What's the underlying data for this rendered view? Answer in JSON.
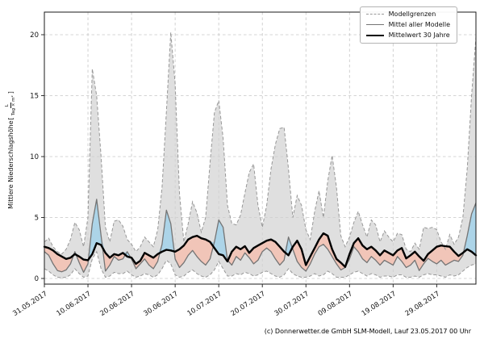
{
  "figure": {
    "ylabel_prefix": "Mittlere Niederschlagshöhe ",
    "ylabel_bracket_open": "[",
    "ylabel_frac_num": "L",
    "ylabel_frac_den": "Tag × m²",
    "ylabel_bracket_close": "]",
    "caption": "(c) Donnerwetter.de GmbH SLM-Modell, Lauf 23.05.2017 00 Uhr"
  },
  "chart_data": {
    "type": "line",
    "title": "",
    "xlabel": "",
    "ylabel": "Mittlere Niederschlagshöhe [L/(Tag × m²)]",
    "grid": true,
    "legend_position": "top-right",
    "ylim": [
      -0.5,
      21.9
    ],
    "y_ticks": [
      0,
      5,
      10,
      15,
      20
    ],
    "x_start_date": "31.05.2017",
    "x_end_date": "07.09.2017",
    "x_step_days": 1,
    "x_tick_days": [
      0,
      10,
      20,
      30,
      40,
      50,
      60,
      70,
      80,
      90
    ],
    "x_tick_labels": [
      "31.05.2017",
      "10.06.2017",
      "20.06.2017",
      "30.06.2017",
      "10.07.2017",
      "20.07.2017",
      "30.07.2017",
      "09.08.2017",
      "19.08.2017",
      "29.08.2017"
    ],
    "legend": [
      {
        "label": "Modellgrenzen",
        "style": "dashed-gray"
      },
      {
        "label": "Mittel aller Modelle",
        "style": "solid-gray"
      },
      {
        "label": "Mittelwert 30 Jahre",
        "style": "solid-black"
      }
    ],
    "colors": {
      "envelope_fill": "#d2d2d2",
      "envelope_edge": "#979797",
      "above_fill": "#a9d3e8",
      "below_fill": "#f1c3b5",
      "mean_line": "#747474",
      "climate_line": "#000000",
      "grid_line": "#c6c6c6"
    },
    "series": [
      {
        "name": "Modellgrenze oben",
        "values": [
          3.0,
          3.3,
          2.6,
          2.2,
          2.0,
          2.4,
          3.2,
          4.6,
          4.0,
          2.6,
          5.0,
          17.2,
          15.0,
          10.0,
          4.2,
          3.0,
          4.7,
          4.8,
          4.3,
          3.2,
          2.8,
          2.2,
          2.6,
          3.4,
          3.0,
          2.6,
          4.0,
          7.5,
          13.7,
          20.2,
          16.0,
          7.0,
          3.0,
          4.5,
          6.3,
          5.4,
          3.8,
          5.0,
          9.5,
          13.6,
          14.6,
          11.5,
          6.0,
          4.5,
          4.4,
          5.2,
          7.0,
          8.7,
          9.4,
          6.0,
          4.2,
          6.0,
          9.0,
          11.0,
          12.3,
          12.4,
          9.0,
          5.0,
          6.8,
          6.0,
          4.0,
          3.2,
          5.5,
          7.2,
          5.0,
          8.0,
          10.1,
          7.5,
          3.5,
          2.6,
          3.4,
          4.6,
          5.5,
          4.4,
          3.4,
          4.8,
          4.4,
          3.0,
          3.9,
          3.4,
          3.0,
          3.7,
          3.6,
          2.4,
          2.2,
          2.9,
          2.4,
          4.2,
          4.1,
          4.2,
          4.0,
          3.0,
          2.4,
          3.6,
          2.8,
          3.4,
          5.0,
          9.0,
          15.0,
          19.8
        ]
      },
      {
        "name": "Modellgrenze unten",
        "values": [
          0.8,
          0.6,
          0.3,
          0.1,
          0.05,
          0.1,
          0.3,
          0.8,
          0.4,
          0.1,
          0.2,
          1.6,
          2.2,
          0.8,
          0.1,
          0.2,
          0.5,
          0.4,
          0.4,
          0.6,
          0.3,
          0.1,
          0.2,
          0.4,
          0.3,
          0.1,
          0.3,
          0.8,
          1.5,
          1.2,
          0.3,
          0.1,
          0.2,
          0.5,
          0.7,
          0.4,
          0.2,
          0.1,
          0.3,
          0.7,
          1.4,
          0.8,
          0.2,
          0.2,
          0.4,
          0.3,
          0.5,
          0.4,
          0.2,
          0.3,
          0.5,
          0.6,
          0.4,
          0.2,
          0.1,
          0.3,
          0.8,
          0.4,
          0.2,
          0.1,
          0.1,
          0.2,
          0.4,
          0.2,
          0.3,
          0.6,
          0.4,
          0.1,
          0.1,
          0.1,
          0.3,
          0.5,
          0.6,
          0.4,
          0.2,
          0.4,
          0.3,
          0.1,
          0.2,
          0.2,
          0.1,
          0.3,
          0.3,
          0.1,
          0.1,
          0.2,
          0.1,
          0.3,
          0.4,
          0.3,
          0.3,
          0.2,
          0.1,
          0.3,
          0.2,
          0.3,
          0.6,
          0.9,
          1.1,
          1.2
        ]
      },
      {
        "name": "Mittel aller Modelle",
        "values": [
          2.2,
          1.9,
          1.2,
          0.65,
          0.55,
          0.7,
          1.2,
          2.2,
          1.3,
          0.5,
          1.2,
          4.5,
          6.5,
          3.5,
          0.6,
          1.1,
          1.8,
          1.5,
          1.6,
          2.2,
          1.6,
          0.8,
          1.2,
          1.6,
          1.1,
          0.8,
          1.4,
          2.8,
          5.6,
          4.5,
          1.6,
          0.9,
          1.3,
          1.9,
          2.3,
          1.8,
          1.4,
          1.1,
          1.6,
          3.0,
          4.8,
          4.2,
          1.5,
          1.1,
          1.8,
          1.5,
          2.1,
          1.7,
          1.2,
          1.5,
          2.2,
          2.5,
          2.2,
          1.6,
          1.1,
          1.5,
          3.4,
          2.4,
          1.4,
          0.9,
          0.6,
          1.2,
          2.0,
          2.6,
          2.8,
          2.4,
          1.8,
          1.2,
          0.7,
          0.9,
          1.6,
          2.6,
          2.2,
          1.6,
          1.3,
          1.8,
          1.5,
          1.1,
          1.5,
          1.3,
          1.1,
          1.8,
          1.4,
          0.9,
          1.1,
          1.5,
          0.65,
          1.2,
          1.65,
          1.4,
          1.2,
          1.5,
          1.1,
          1.3,
          1.5,
          1.4,
          1.9,
          3.5,
          5.3,
          6.2
        ]
      },
      {
        "name": "Mittelwert 30 Jahre",
        "values": [
          2.6,
          2.5,
          2.3,
          2.0,
          1.8,
          1.6,
          1.7,
          2.0,
          1.8,
          1.55,
          1.5,
          2.0,
          2.9,
          2.75,
          2.1,
          1.7,
          2.0,
          1.9,
          2.1,
          1.8,
          1.7,
          1.2,
          1.45,
          2.1,
          1.9,
          1.7,
          2.0,
          2.2,
          2.35,
          2.3,
          2.2,
          2.4,
          2.7,
          3.2,
          3.4,
          3.5,
          3.3,
          3.2,
          3.0,
          2.5,
          2.0,
          1.9,
          1.4,
          2.2,
          2.6,
          2.4,
          2.65,
          2.1,
          2.5,
          2.7,
          2.9,
          3.1,
          3.2,
          3.0,
          2.6,
          2.2,
          1.9,
          2.6,
          3.1,
          2.4,
          1.1,
          1.8,
          2.5,
          3.2,
          3.7,
          3.5,
          2.4,
          1.6,
          1.3,
          0.95,
          2.0,
          2.9,
          3.3,
          2.7,
          2.4,
          2.6,
          2.3,
          1.9,
          2.3,
          2.1,
          1.9,
          2.3,
          2.5,
          1.65,
          1.9,
          2.2,
          1.8,
          1.45,
          2.0,
          2.3,
          2.6,
          2.7,
          2.65,
          2.6,
          2.2,
          1.85,
          2.1,
          2.4,
          2.2,
          1.9
        ]
      }
    ]
  }
}
